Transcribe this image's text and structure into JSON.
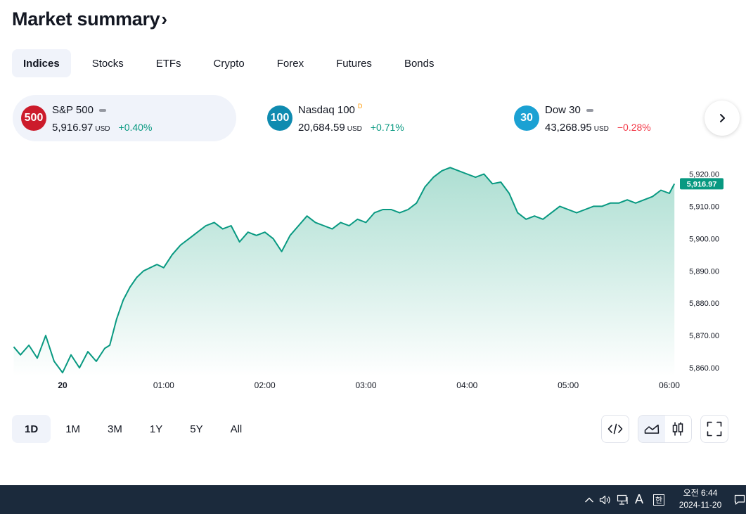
{
  "header": {
    "title": "Market summary",
    "chevron": "›"
  },
  "tabs": [
    {
      "label": "Indices",
      "active": true
    },
    {
      "label": "Stocks",
      "active": false
    },
    {
      "label": "ETFs",
      "active": false
    },
    {
      "label": "Crypto",
      "active": false
    },
    {
      "label": "Forex",
      "active": false
    },
    {
      "label": "Futures",
      "active": false
    },
    {
      "label": "Bonds",
      "active": false
    }
  ],
  "cards": [
    {
      "badge": "500",
      "badge_color": "#cc1b2b",
      "name": "S&P 500",
      "delayed": "",
      "value": "5,916.97",
      "unit": "USD",
      "change": "+0.40%",
      "direction": "pos",
      "active": true
    },
    {
      "badge": "100",
      "badge_color": "#0f8bb0",
      "name": "Nasdaq 100",
      "delayed": "D",
      "value": "20,684.59",
      "unit": "USD",
      "change": "+0.71%",
      "direction": "pos",
      "active": false
    },
    {
      "badge": "30",
      "badge_color": "#1ba1d3",
      "name": "Dow 30",
      "delayed": "",
      "value": "43,268.95",
      "unit": "USD",
      "change": "−0.28%",
      "direction": "neg",
      "active": false
    }
  ],
  "colors": {
    "line": "#089981",
    "fill_top": "#a9ddd0",
    "price_tag_bg": "#089981"
  },
  "chart_data": {
    "type": "area",
    "title": "",
    "xlabel": "",
    "ylabel": "",
    "x_ticks": [
      "20",
      "01:00",
      "02:00",
      "03:00",
      "04:00",
      "05:00",
      "06:00"
    ],
    "x_tick_minutes": [
      0,
      60,
      120,
      180,
      240,
      300,
      360
    ],
    "y_ticks": [
      "5,920.00",
      "5,910.00",
      "5,900.00",
      "5,890.00",
      "5,880.00",
      "5,870.00",
      "5,860.00"
    ],
    "ylim": [
      5857.5,
      5923.0
    ],
    "last_price_label": "5,916.97",
    "last_price": 5916.97,
    "series": [
      {
        "x": [
          -29,
          -25,
          -20,
          -15,
          -10,
          -5,
          0,
          5,
          10,
          15,
          20,
          25,
          28,
          32,
          36,
          40,
          44,
          48,
          52,
          56,
          60,
          65,
          70,
          75,
          80,
          85,
          90,
          95,
          100,
          105,
          110,
          115,
          120,
          125,
          130,
          135,
          140,
          145,
          150,
          155,
          160,
          165,
          170,
          175,
          180,
          185,
          190,
          195,
          200,
          205,
          210,
          215,
          220,
          225,
          230,
          235,
          240,
          245,
          250,
          255,
          260,
          265,
          270,
          275,
          280,
          285,
          290,
          295,
          300,
          305,
          310,
          315,
          320,
          325,
          330,
          335,
          340,
          345,
          350,
          355,
          360,
          363
        ],
        "values": [
          5866.5,
          5864,
          5867,
          5863,
          5870,
          5862,
          5858.5,
          5864,
          5860,
          5865,
          5862,
          5866,
          5867,
          5875,
          5881,
          5885,
          5888,
          5890,
          5891,
          5892,
          5891,
          5895,
          5898,
          5900,
          5902,
          5904,
          5905,
          5903,
          5904,
          5899,
          5902,
          5901,
          5902,
          5900,
          5896,
          5901,
          5904,
          5907,
          5905,
          5904,
          5903,
          5905,
          5904,
          5906,
          5905,
          5908,
          5909,
          5909,
          5908,
          5909,
          5911,
          5916,
          5919,
          5921,
          5922,
          5921,
          5920,
          5919,
          5920,
          5917,
          5917.5,
          5914,
          5908,
          5906,
          5907,
          5906,
          5908,
          5910,
          5909,
          5908,
          5909,
          5910,
          5910,
          5911,
          5911,
          5912,
          5911,
          5912,
          5913,
          5915,
          5914,
          5916.97
        ]
      }
    ],
    "grid": false,
    "legend": "none"
  },
  "periods": [
    {
      "label": "1D",
      "active": true
    },
    {
      "label": "1M",
      "active": false
    },
    {
      "label": "3M",
      "active": false
    },
    {
      "label": "1Y",
      "active": false
    },
    {
      "label": "5Y",
      "active": false
    },
    {
      "label": "All",
      "active": false
    }
  ],
  "tools": {
    "embed_icon": "code-icon",
    "area_icon": "area-chart-icon",
    "candle_icon": "candlestick-icon",
    "fullscreen_icon": "fullscreen-icon"
  },
  "taskbar": {
    "ime": "A",
    "hangul": "한",
    "time": "오전 6:44",
    "date": "2024-11-20"
  }
}
